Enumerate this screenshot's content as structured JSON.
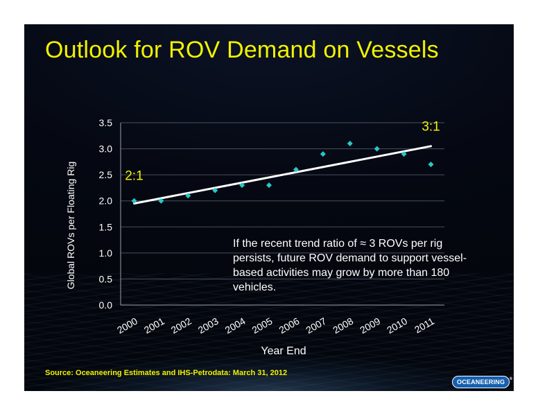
{
  "slide": {
    "title": "Outlook for ROV Demand on Vessels",
    "note": "If the recent trend ratio of ≈ 3 ROVs per rig persists, future ROV demand to support vessel-based activities may grow by more than 180 vehicles.",
    "source": "Source:  Oceaneering Estimates and IHS-Petrodata: March 31, 2012",
    "logo": "OCEANEERING",
    "logo_mark": "®"
  },
  "colors": {
    "title": "#f2f200",
    "marker": "#29c7c7",
    "trendline": "#ffffff",
    "axis_text": "#ffffff",
    "background": "#050812"
  },
  "chart_data": {
    "type": "scatter",
    "title": "",
    "xlabel": "Year End",
    "ylabel": "Global ROVs per Floating Rig",
    "categories": [
      "2000",
      "2001",
      "2002",
      "2003",
      "2004",
      "2005",
      "2006",
      "2007",
      "2008",
      "2009",
      "2010",
      "2011"
    ],
    "series": [
      {
        "values": [
          2.0,
          2.0,
          2.1,
          2.2,
          2.3,
          2.3,
          2.6,
          2.9,
          3.1,
          3.0,
          2.9,
          2.7
        ]
      }
    ],
    "trendline": {
      "start": 1.95,
      "end": 3.05
    },
    "ylim": [
      0,
      3.5
    ],
    "yticks": [
      "0.0",
      "0.5",
      "1.0",
      "1.5",
      "2.0",
      "2.5",
      "3.0",
      "3.5"
    ],
    "grid": true,
    "annotations": [
      {
        "text": "2:1",
        "category": "2000",
        "value": 2.4
      },
      {
        "text": "3:1",
        "category": "2011",
        "value": 3.35
      }
    ]
  }
}
